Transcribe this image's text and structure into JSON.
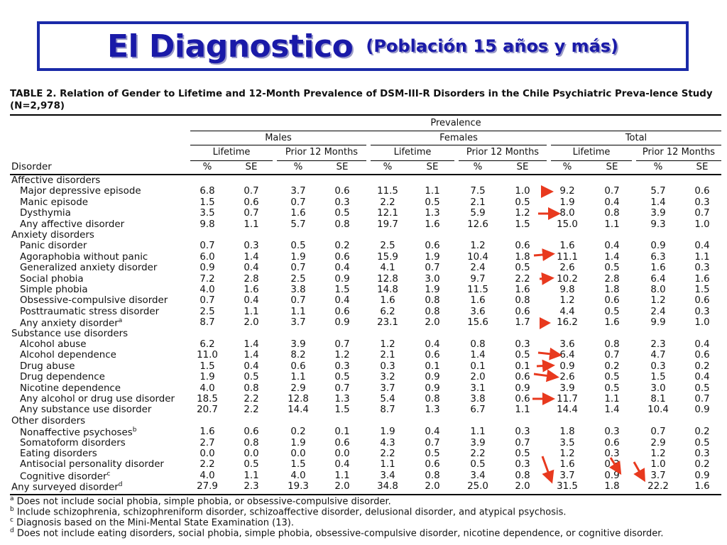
{
  "title": {
    "main": "El Diagnostico",
    "sub": "(Población 15 años y más)"
  },
  "caption": "TABLE 2. Relation of Gender to Lifetime and 12-Month Prevalence of DSM-III-R Disorders in the Chile Psychiatric Preva-lence Study (N=2,978)",
  "headers": {
    "prevalence": "Prevalence",
    "groups": [
      "Males",
      "Females",
      "Total"
    ],
    "periods": [
      "Lifetime",
      "Prior 12 Months"
    ],
    "disorder": "Disorder",
    "pct": "%",
    "se": "SE"
  },
  "rows": [
    {
      "label": "Affective disorders",
      "indent": 0,
      "values": []
    },
    {
      "label": "Major depressive episode",
      "indent": 1,
      "values": [
        "6.8",
        "0.7",
        "3.7",
        "0.6",
        "11.5",
        "1.1",
        "7.5",
        "1.0",
        "9.2",
        "0.7",
        "5.7",
        "0.6"
      ]
    },
    {
      "label": "Manic episode",
      "indent": 1,
      "values": [
        "1.5",
        "0.6",
        "0.7",
        "0.3",
        "2.2",
        "0.5",
        "2.1",
        "0.5",
        "1.9",
        "0.4",
        "1.4",
        "0.3"
      ]
    },
    {
      "label": "Dysthymia",
      "indent": 1,
      "values": [
        "3.5",
        "0.7",
        "1.6",
        "0.5",
        "12.1",
        "1.3",
        "5.9",
        "1.2",
        "8.0",
        "0.8",
        "3.9",
        "0.7"
      ]
    },
    {
      "label": "Any affective disorder",
      "indent": 1,
      "values": [
        "9.8",
        "1.1",
        "5.7",
        "0.8",
        "19.7",
        "1.6",
        "12.6",
        "1.5",
        "15.0",
        "1.1",
        "9.3",
        "1.0"
      ]
    },
    {
      "label": "Anxiety disorders",
      "indent": 0,
      "values": []
    },
    {
      "label": "Panic disorder",
      "indent": 1,
      "values": [
        "0.7",
        "0.3",
        "0.5",
        "0.2",
        "2.5",
        "0.6",
        "1.2",
        "0.6",
        "1.6",
        "0.4",
        "0.9",
        "0.4"
      ]
    },
    {
      "label": "Agoraphobia without panic",
      "indent": 1,
      "values": [
        "6.0",
        "1.4",
        "1.9",
        "0.6",
        "15.9",
        "1.9",
        "10.4",
        "1.8",
        "11.1",
        "1.4",
        "6.3",
        "1.1"
      ]
    },
    {
      "label": "Generalized anxiety disorder",
      "indent": 1,
      "values": [
        "0.9",
        "0.4",
        "0.7",
        "0.4",
        "4.1",
        "0.7",
        "2.4",
        "0.5",
        "2.6",
        "0.5",
        "1.6",
        "0.3"
      ]
    },
    {
      "label": "Social phobia",
      "indent": 1,
      "values": [
        "7.2",
        "2.8",
        "2.5",
        "0.9",
        "12.8",
        "3.0",
        "9.7",
        "2.2",
        "10.2",
        "2.8",
        "6.4",
        "1.6"
      ]
    },
    {
      "label": "Simple phobia",
      "indent": 1,
      "values": [
        "4.0",
        "1.6",
        "3.8",
        "1.5",
        "14.8",
        "1.9",
        "11.5",
        "1.6",
        "9.8",
        "1.8",
        "8.0",
        "1.5"
      ]
    },
    {
      "label": "Obsessive-compulsive disorder",
      "indent": 1,
      "values": [
        "0.7",
        "0.4",
        "0.7",
        "0.4",
        "1.6",
        "0.8",
        "1.6",
        "0.8",
        "1.2",
        "0.6",
        "1.2",
        "0.6"
      ]
    },
    {
      "label": "Posttraumatic stress disorder",
      "indent": 1,
      "values": [
        "2.5",
        "1.1",
        "1.1",
        "0.6",
        "6.2",
        "0.8",
        "3.6",
        "0.6",
        "4.4",
        "0.5",
        "2.4",
        "0.3"
      ]
    },
    {
      "label": "Any anxiety disorder",
      "sup": "a",
      "indent": 1,
      "values": [
        "8.7",
        "2.0",
        "3.7",
        "0.9",
        "23.1",
        "2.0",
        "15.6",
        "1.7",
        "16.2",
        "1.6",
        "9.9",
        "1.0"
      ]
    },
    {
      "label": "Substance use disorders",
      "indent": 0,
      "values": []
    },
    {
      "label": "Alcohol abuse",
      "indent": 1,
      "values": [
        "6.2",
        "1.4",
        "3.9",
        "0.7",
        "1.2",
        "0.4",
        "0.8",
        "0.3",
        "3.6",
        "0.8",
        "2.3",
        "0.4"
      ]
    },
    {
      "label": "Alcohol dependence",
      "indent": 1,
      "values": [
        "11.0",
        "1.4",
        "8.2",
        "1.2",
        "2.1",
        "0.6",
        "1.4",
        "0.5",
        "6.4",
        "0.7",
        "4.7",
        "0.6"
      ]
    },
    {
      "label": "Drug abuse",
      "indent": 1,
      "values": [
        "1.5",
        "0.4",
        "0.6",
        "0.3",
        "0.3",
        "0.1",
        "0.1",
        "0.1",
        "0.9",
        "0.2",
        "0.3",
        "0.2"
      ]
    },
    {
      "label": "Drug dependence",
      "indent": 1,
      "values": [
        "1.9",
        "0.5",
        "1.1",
        "0.5",
        "3.2",
        "0.9",
        "2.0",
        "0.6",
        "2.6",
        "0.5",
        "1.5",
        "0.4"
      ]
    },
    {
      "label": "Nicotine dependence",
      "indent": 1,
      "values": [
        "4.0",
        "0.8",
        "2.9",
        "0.7",
        "3.7",
        "0.9",
        "3.1",
        "0.9",
        "3.9",
        "0.5",
        "3.0",
        "0.5"
      ]
    },
    {
      "label": "Any alcohol or drug use disorder",
      "indent": 1,
      "values": [
        "18.5",
        "2.2",
        "12.8",
        "1.3",
        "5.4",
        "0.8",
        "3.8",
        "0.6",
        "11.7",
        "1.1",
        "8.1",
        "0.7"
      ]
    },
    {
      "label": "Any substance use disorder",
      "indent": 1,
      "values": [
        "20.7",
        "2.2",
        "14.4",
        "1.5",
        "8.7",
        "1.3",
        "6.7",
        "1.1",
        "14.4",
        "1.4",
        "10.4",
        "0.9"
      ]
    },
    {
      "label": "Other disorders",
      "indent": 0,
      "values": []
    },
    {
      "label": "Nonaffective psychoses",
      "sup": "b",
      "indent": 1,
      "values": [
        "1.6",
        "0.6",
        "0.2",
        "0.1",
        "1.9",
        "0.4",
        "1.1",
        "0.3",
        "1.8",
        "0.3",
        "0.7",
        "0.2"
      ]
    },
    {
      "label": "Somatoform disorders",
      "indent": 1,
      "values": [
        "2.7",
        "0.8",
        "1.9",
        "0.6",
        "4.3",
        "0.7",
        "3.9",
        "0.7",
        "3.5",
        "0.6",
        "2.9",
        "0.5"
      ]
    },
    {
      "label": "Eating disorders",
      "indent": 1,
      "values": [
        "0.0",
        "0.0",
        "0.0",
        "0.0",
        "2.2",
        "0.5",
        "2.2",
        "0.5",
        "1.2",
        "0.3",
        "1.2",
        "0.3"
      ]
    },
    {
      "label": "Antisocial personality disorder",
      "indent": 1,
      "values": [
        "2.2",
        "0.5",
        "1.5",
        "0.4",
        "1.1",
        "0.6",
        "0.5",
        "0.3",
        "1.6",
        "0.3",
        "1.0",
        "0.2"
      ]
    },
    {
      "label": "Cognitive disorder",
      "sup": "c",
      "indent": 1,
      "values": [
        "4.0",
        "1.1",
        "4.0",
        "1.1",
        "3.4",
        "0.8",
        "3.4",
        "0.8",
        "3.7",
        "0.9",
        "3.7",
        "0.9"
      ]
    },
    {
      "label": "Any surveyed disorder",
      "sup": "d",
      "indent": 0,
      "values": [
        "27.9",
        "2.3",
        "19.3",
        "2.0",
        "34.8",
        "2.0",
        "25.0",
        "2.0",
        "31.5",
        "1.8",
        "22.2",
        "1.6"
      ]
    }
  ],
  "footnotes": [
    {
      "mark": "a",
      "text": " Does not include social phobia, simple phobia, or obsessive-compulsive disorder."
    },
    {
      "mark": "b",
      "text": " Include schizophrenia, schizophreniform disorder, schizoaffective disorder, delusional disorder, and atypical psychosis."
    },
    {
      "mark": "c",
      "text": " Diagnosis based on the Mini-Mental State Examination (13)."
    },
    {
      "mark": "d",
      "text": " Does not include eating disorders, social phobia, simple phobia, obsessive-compulsive disorder, nicotine dependence, or cognitive disorder."
    }
  ],
  "accent_colors": {
    "title": "#1a1aa8",
    "arrow": "#e8391e"
  }
}
